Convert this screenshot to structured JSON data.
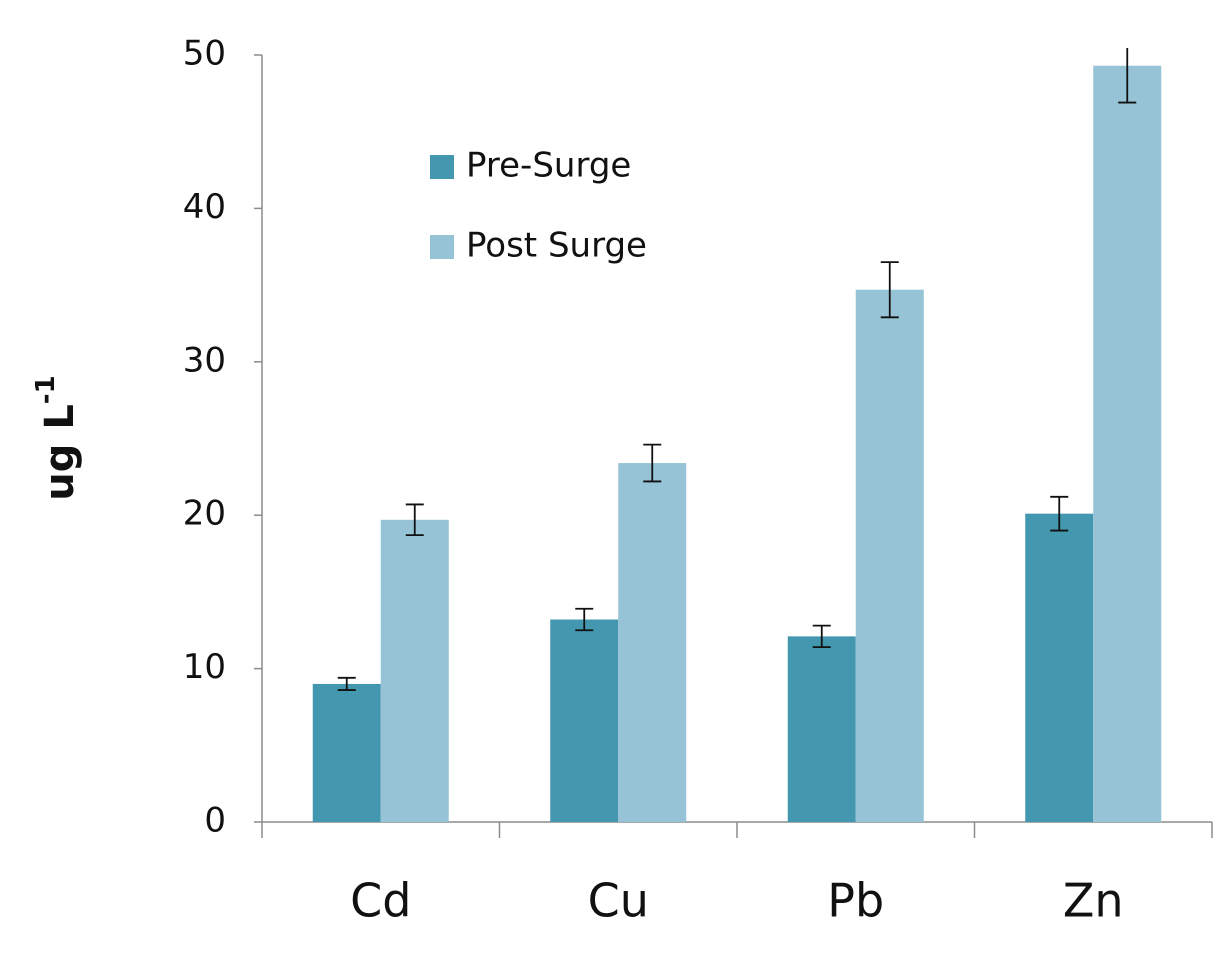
{
  "chart_data": {
    "type": "bar",
    "ylabel": {
      "text": "ug L",
      "superscript": "-1"
    },
    "categories": [
      "Cd",
      "Cu",
      "Pb",
      "Zn"
    ],
    "series": [
      {
        "name": "Pre-Surge",
        "color": "#4397ae",
        "values": [
          9.0,
          13.2,
          12.1,
          20.1
        ],
        "errors": [
          0.4,
          0.7,
          0.7,
          1.1
        ]
      },
      {
        "name": "Post Surge",
        "color": "#96c3d5",
        "values": [
          19.7,
          23.4,
          34.7,
          49.3
        ],
        "errors": [
          1.0,
          1.2,
          1.8,
          2.4
        ]
      }
    ],
    "ylim": [
      0,
      50
    ],
    "yticks": [
      0,
      10,
      20,
      30,
      40,
      50
    ],
    "grid": false,
    "legend": "top-left"
  }
}
